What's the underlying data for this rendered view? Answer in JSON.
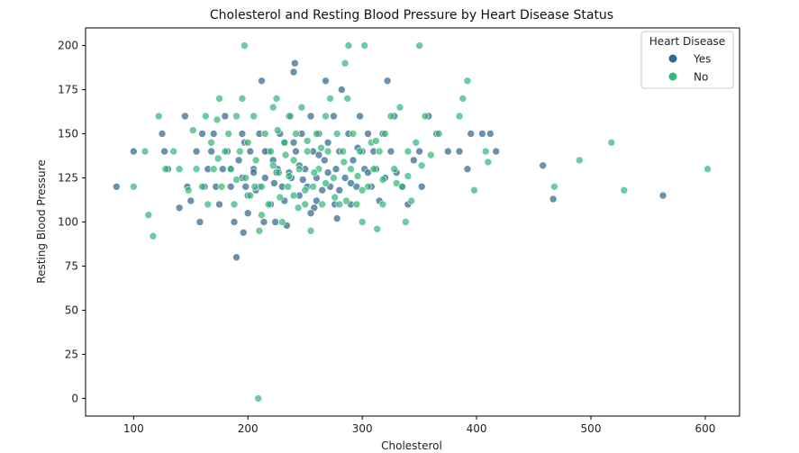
{
  "chart_data": {
    "type": "scatter",
    "title": "Cholesterol and Resting Blood Pressure by Heart Disease Status",
    "xlabel": "Cholesterol",
    "ylabel": "Resting Blood Pressure",
    "xlim": [
      58,
      630
    ],
    "ylim": [
      -10,
      210
    ],
    "xticks": [
      "100",
      "200",
      "300",
      "400",
      "500",
      "600"
    ],
    "yticks": [
      "0",
      "25",
      "50",
      "75",
      "100",
      "125",
      "150",
      "175",
      "200"
    ],
    "grid": false,
    "legend": {
      "title": "Heart Disease",
      "placement": "top-right"
    },
    "series": [
      {
        "name": "Yes",
        "color": "#31688e",
        "points": [
          [
            85,
            120
          ],
          [
            100,
            140
          ],
          [
            125,
            150
          ],
          [
            127,
            140
          ],
          [
            130,
            130
          ],
          [
            140,
            108
          ],
          [
            145,
            160
          ],
          [
            147,
            120
          ],
          [
            150,
            112
          ],
          [
            155,
            140
          ],
          [
            158,
            100
          ],
          [
            160,
            150
          ],
          [
            162,
            120
          ],
          [
            165,
            130
          ],
          [
            168,
            140
          ],
          [
            170,
            150
          ],
          [
            172,
            120
          ],
          [
            175,
            110
          ],
          [
            178,
            130
          ],
          [
            180,
            160
          ],
          [
            182,
            140
          ],
          [
            185,
            120
          ],
          [
            188,
            100
          ],
          [
            190,
            80
          ],
          [
            192,
            135
          ],
          [
            195,
            125
          ],
          [
            196,
            94
          ],
          [
            197,
            145
          ],
          [
            198,
            120
          ],
          [
            200,
            105
          ],
          [
            202,
            140
          ],
          [
            205,
            130
          ],
          [
            207,
            118
          ],
          [
            210,
            150
          ],
          [
            212,
            180
          ],
          [
            214,
            100
          ],
          [
            215,
            125
          ],
          [
            218,
            140
          ],
          [
            220,
            110
          ],
          [
            222,
            135
          ],
          [
            224,
            100
          ],
          [
            226,
            130
          ],
          [
            228,
            150
          ],
          [
            230,
            120
          ],
          [
            232,
            145
          ],
          [
            234,
            98
          ],
          [
            236,
            160
          ],
          [
            238,
            125
          ],
          [
            240,
            185
          ],
          [
            241,
            190
          ],
          [
            242,
            140
          ],
          [
            245,
            115
          ],
          [
            247,
            150
          ],
          [
            250,
            130
          ],
          [
            252,
            120
          ],
          [
            255,
            160
          ],
          [
            257,
            140
          ],
          [
            258,
            108
          ],
          [
            260,
            125
          ],
          [
            262,
            150
          ],
          [
            265,
            118
          ],
          [
            267,
            135
          ],
          [
            268,
            180
          ],
          [
            270,
            145
          ],
          [
            272,
            120
          ],
          [
            275,
            160
          ],
          [
            277,
            130
          ],
          [
            278,
            102
          ],
          [
            280,
            140
          ],
          [
            282,
            175
          ],
          [
            285,
            125
          ],
          [
            288,
            150
          ],
          [
            290,
            110
          ],
          [
            292,
            135
          ],
          [
            295,
            120
          ],
          [
            298,
            160
          ],
          [
            300,
            140
          ],
          [
            302,
            130
          ],
          [
            305,
            150
          ],
          [
            308,
            120
          ],
          [
            310,
            140
          ],
          [
            312,
            130
          ],
          [
            315,
            112
          ],
          [
            318,
            150
          ],
          [
            320,
            125
          ],
          [
            322,
            180
          ],
          [
            325,
            140
          ],
          [
            328,
            160
          ],
          [
            330,
            128
          ],
          [
            335,
            120
          ],
          [
            340,
            110
          ],
          [
            345,
            135
          ],
          [
            350,
            140
          ],
          [
            352,
            120
          ],
          [
            358,
            160
          ],
          [
            365,
            150
          ],
          [
            375,
            140
          ],
          [
            385,
            140
          ],
          [
            392,
            130
          ],
          [
            395,
            150
          ],
          [
            405,
            150
          ],
          [
            412,
            150
          ],
          [
            417,
            140
          ],
          [
            458,
            132
          ],
          [
            467,
            113
          ],
          [
            563,
            115
          ],
          [
            210,
            120
          ],
          [
            225,
            128
          ],
          [
            245,
            132
          ],
          [
            270,
            128
          ],
          [
            290,
            122
          ],
          [
            232,
            112
          ],
          [
            255,
            105
          ],
          [
            200,
            115
          ],
          [
            215,
            140
          ],
          [
            236,
            128
          ],
          [
            262,
            138
          ],
          [
            280,
            118
          ],
          [
            305,
            128
          ],
          [
            240,
            145
          ],
          [
            185,
            130
          ],
          [
            195,
            150
          ],
          [
            205,
            128
          ],
          [
            260,
            112
          ],
          [
            248,
            124
          ],
          [
            223,
            122
          ],
          [
            276,
            110
          ],
          [
            296,
            142
          ]
        ]
      },
      {
        "name": "No",
        "color": "#35b779",
        "points": [
          [
            100,
            120
          ],
          [
            110,
            140
          ],
          [
            113,
            104
          ],
          [
            117,
            92
          ],
          [
            122,
            160
          ],
          [
            128,
            130
          ],
          [
            135,
            140
          ],
          [
            140,
            130
          ],
          [
            148,
            118
          ],
          [
            152,
            152
          ],
          [
            155,
            130
          ],
          [
            160,
            120
          ],
          [
            163,
            160
          ],
          [
            165,
            110
          ],
          [
            168,
            145
          ],
          [
            170,
            130
          ],
          [
            173,
            158
          ],
          [
            175,
            170
          ],
          [
            177,
            120
          ],
          [
            180,
            140
          ],
          [
            183,
            150
          ],
          [
            185,
            130
          ],
          [
            188,
            110
          ],
          [
            190,
            160
          ],
          [
            193,
            140
          ],
          [
            195,
            170
          ],
          [
            197,
            200
          ],
          [
            198,
            125
          ],
          [
            200,
            145
          ],
          [
            202,
            115
          ],
          [
            205,
            160
          ],
          [
            207,
            135
          ],
          [
            209,
            0
          ],
          [
            210,
            95
          ],
          [
            212,
            120
          ],
          [
            215,
            150
          ],
          [
            218,
            110
          ],
          [
            220,
            140
          ],
          [
            222,
            165
          ],
          [
            225,
            170
          ],
          [
            227,
            128
          ],
          [
            230,
            100
          ],
          [
            232,
            145
          ],
          [
            235,
            120
          ],
          [
            237,
            160
          ],
          [
            240,
            115
          ],
          [
            242,
            150
          ],
          [
            245,
            130
          ],
          [
            247,
            165
          ],
          [
            250,
            110
          ],
          [
            252,
            140
          ],
          [
            255,
            95
          ],
          [
            257,
            120
          ],
          [
            260,
            150
          ],
          [
            262,
            130
          ],
          [
            265,
            110
          ],
          [
            268,
            160
          ],
          [
            270,
            140
          ],
          [
            272,
            170
          ],
          [
            275,
            125
          ],
          [
            278,
            150
          ],
          [
            280,
            110
          ],
          [
            283,
            140
          ],
          [
            285,
            190
          ],
          [
            287,
            170
          ],
          [
            288,
            200
          ],
          [
            290,
            130
          ],
          [
            292,
            150
          ],
          [
            295,
            110
          ],
          [
            298,
            140
          ],
          [
            300,
            100
          ],
          [
            302,
            200
          ],
          [
            305,
            120
          ],
          [
            308,
            145
          ],
          [
            310,
            130
          ],
          [
            313,
            96
          ],
          [
            315,
            140
          ],
          [
            318,
            110
          ],
          [
            320,
            150
          ],
          [
            325,
            160
          ],
          [
            328,
            130
          ],
          [
            330,
            122
          ],
          [
            333,
            165
          ],
          [
            335,
            120
          ],
          [
            338,
            100
          ],
          [
            340,
            140
          ],
          [
            343,
            112
          ],
          [
            347,
            145
          ],
          [
            350,
            200
          ],
          [
            352,
            132
          ],
          [
            355,
            160
          ],
          [
            360,
            138
          ],
          [
            367,
            150
          ],
          [
            385,
            160
          ],
          [
            388,
            170
          ],
          [
            392,
            180
          ],
          [
            398,
            118
          ],
          [
            408,
            140
          ],
          [
            410,
            134
          ],
          [
            468,
            120
          ],
          [
            490,
            135
          ],
          [
            518,
            145
          ],
          [
            529,
            118
          ],
          [
            602,
            130
          ],
          [
            240,
            135
          ],
          [
            258,
            128
          ],
          [
            222,
            132
          ],
          [
            233,
            138
          ],
          [
            268,
            122
          ],
          [
            296,
            126
          ],
          [
            212,
            104
          ],
          [
            244,
            108
          ],
          [
            284,
            134
          ],
          [
            206,
            120
          ],
          [
            228,
            114
          ],
          [
            252,
            146
          ],
          [
            300,
            118
          ],
          [
            318,
            124
          ],
          [
            174,
            136
          ],
          [
            190,
            124
          ],
          [
            264,
            142
          ],
          [
            276,
            114
          ],
          [
            236,
            126
          ],
          [
            250,
            118
          ],
          [
            226,
            152
          ],
          [
            286,
            112
          ],
          [
            312,
            146
          ],
          [
            340,
            126
          ]
        ]
      }
    ]
  }
}
